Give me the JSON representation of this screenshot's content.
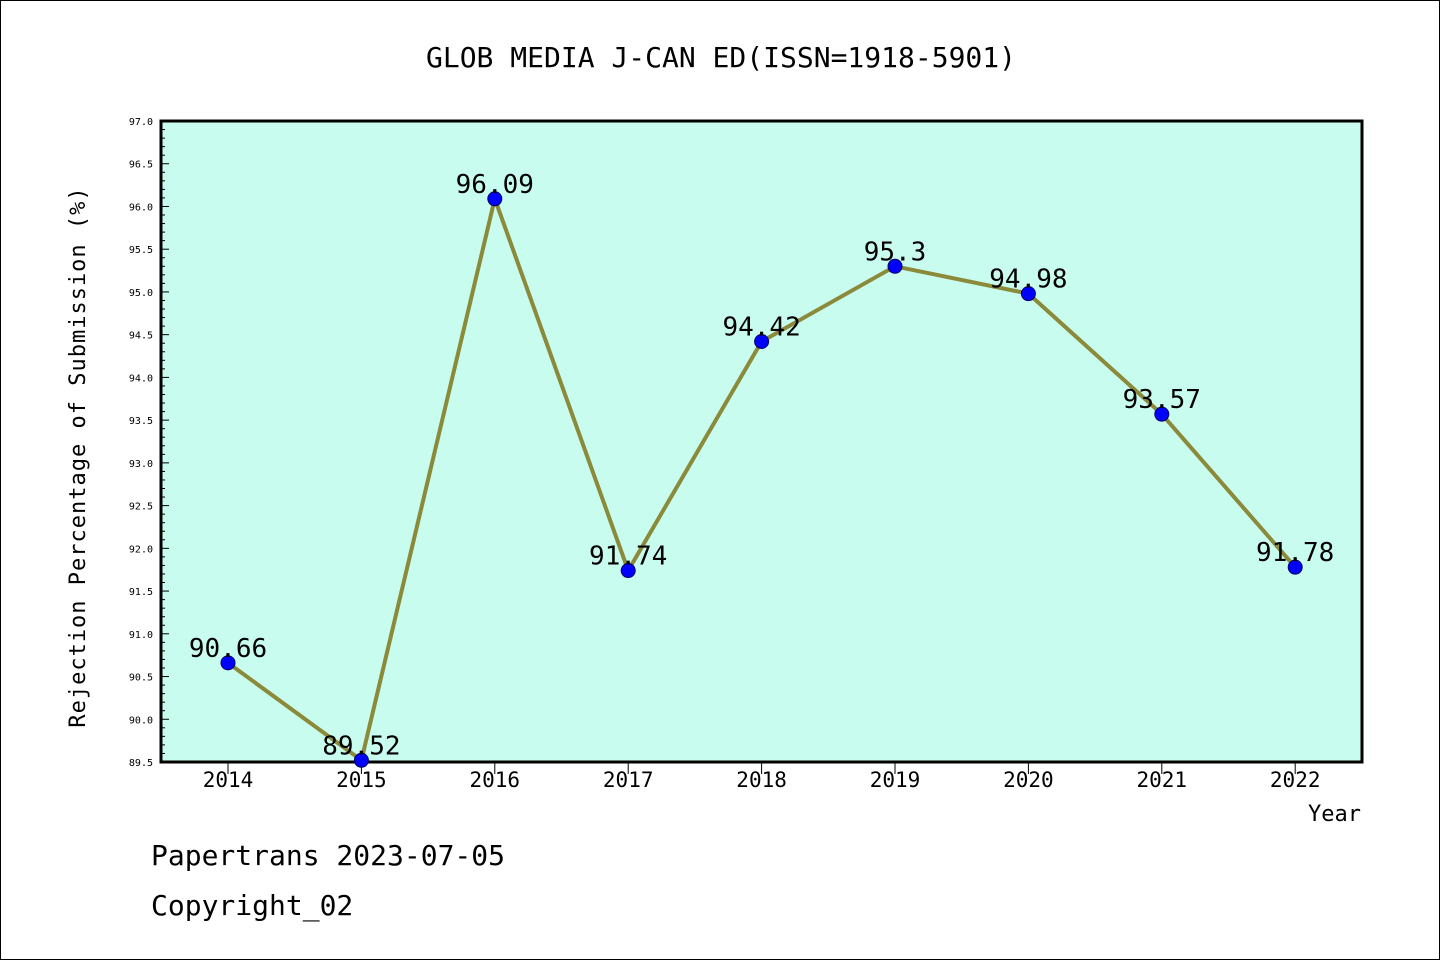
{
  "footer": {
    "line1": "Papertrans 2023-07-05",
    "line2": "Copyright_02"
  },
  "chart_data": {
    "type": "line",
    "title": "GLOB MEDIA J-CAN ED(ISSN=1918-5901)",
    "xlabel": "Year",
    "ylabel": "Rejection Percentage of Submission (%)",
    "categories": [
      "2014",
      "2015",
      "2016",
      "2017",
      "2018",
      "2019",
      "2020",
      "2021",
      "2022"
    ],
    "values": [
      90.66,
      89.52,
      96.09,
      91.74,
      94.42,
      95.3,
      94.98,
      93.57,
      91.78
    ],
    "data_labels": [
      "90.66",
      "89.52",
      "96.09",
      "91.74",
      "94.42",
      "95.3",
      "94.98",
      "93.57",
      "91.78"
    ],
    "ylim": [
      89.5,
      97.0
    ],
    "yticks": [
      "89.5",
      "90.0",
      "90.5",
      "91.0",
      "91.5",
      "92.0",
      "92.5",
      "93.0",
      "93.5",
      "94.0",
      "94.5",
      "95.0",
      "95.5",
      "96.0",
      "96.5",
      "97.0"
    ],
    "grid": false,
    "legend": "none",
    "colors": {
      "plot_background": "#c8fcee",
      "line": "#8b8a3a",
      "marker": "#0000ff"
    }
  }
}
